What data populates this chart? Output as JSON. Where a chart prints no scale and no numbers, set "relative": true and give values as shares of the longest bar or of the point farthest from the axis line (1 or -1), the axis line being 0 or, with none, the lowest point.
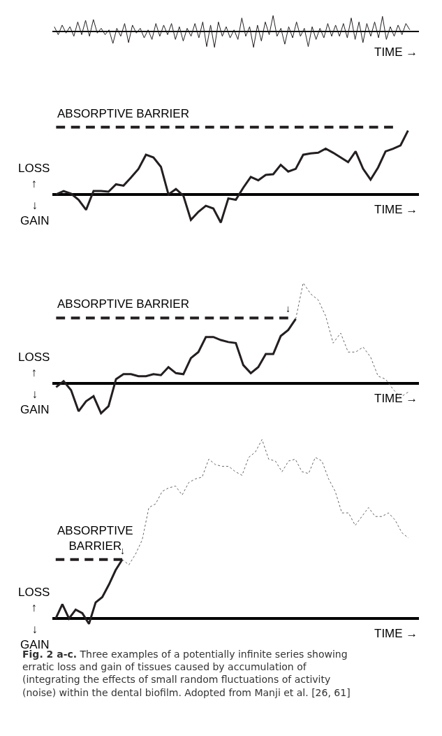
{
  "chart_data": [
    {
      "type": "line",
      "relative": true,
      "xlabel": "TIME →",
      "categories": [
        null,
        null,
        null,
        null,
        null,
        null,
        null,
        null,
        null,
        null,
        null,
        null,
        null,
        null,
        null,
        null,
        null,
        null,
        null,
        null,
        null,
        null,
        null,
        null,
        null,
        null,
        null,
        null,
        null,
        null,
        null,
        null,
        null,
        null,
        null,
        null,
        null,
        null,
        null,
        null,
        null,
        null,
        null,
        null,
        null,
        null,
        null,
        null,
        null,
        null,
        null,
        null,
        null,
        null,
        null,
        null,
        null,
        null,
        null,
        null,
        null,
        null,
        null,
        null,
        null,
        null,
        null,
        null,
        null,
        null,
        null,
        null,
        null,
        null,
        null,
        null,
        null,
        null,
        null,
        null,
        null,
        null,
        null,
        null,
        null,
        null,
        null,
        null,
        null,
        null,
        null,
        null
      ],
      "series": [
        {
          "color": "#231f20",
          "line_style": "solid",
          "values": [
            0.3,
            -0.2,
            0.4,
            -0.1,
            0.3,
            -0.3,
            0.6,
            -0.2,
            0.7,
            -0.3,
            0.75,
            -0.1,
            0.2,
            -0.2,
            0.1,
            -0.75,
            0.2,
            -0.3,
            0.5,
            -0.7,
            0.4,
            -0.1,
            0.2,
            -0.4,
            0.1,
            -0.5,
            0.5,
            -0.3,
            0.4,
            -0.2,
            0.5,
            -0.5,
            0.3,
            -0.6,
            0.2,
            -0.3,
            0.5,
            -0.4,
            0.6,
            -0.95,
            0.4,
            -1.0,
            0.6,
            -0.3,
            0.3,
            -0.4,
            0.1,
            -0.5,
            0.85,
            -0.3,
            0.3,
            -1.0,
            0.4,
            -0.6,
            0.6,
            -0.2,
            1.0,
            -0.3,
            0.2,
            -0.8,
            0.3,
            -0.4,
            0.6,
            -0.3,
            0.2,
            -0.95,
            0.3,
            -0.5,
            0.2,
            -0.4,
            0.5,
            -0.3,
            0.4,
            -0.3,
            0.5,
            -0.4,
            0.85,
            -0.5,
            0.6,
            -0.7,
            0.5,
            -0.3,
            0.6,
            -0.4,
            0.95,
            -0.5,
            0.3,
            -0.3,
            0.4,
            -0.2,
            0.5,
            0.1
          ]
        }
      ]
    },
    {
      "type": "line",
      "relative": true,
      "xlabel": "TIME →",
      "annotations": [
        "LOSS\n↑",
        "↓\nGAIN"
      ],
      "categories": [
        null,
        null,
        null,
        null,
        null,
        null,
        null,
        null,
        null,
        null,
        null,
        null,
        null,
        null,
        null,
        null,
        null,
        null,
        null,
        null,
        null,
        null,
        null,
        null,
        null,
        null,
        null,
        null,
        null,
        null,
        null,
        null,
        null,
        null,
        null,
        null,
        null,
        null,
        null,
        null,
        null,
        null,
        null,
        null,
        null,
        null,
        null,
        null
      ],
      "series": [
        {
          "name": "ABSORPTIVE BARRIER",
          "color": "#231f20",
          "line_style": "dashed",
          "values": [
            1,
            1,
            1,
            1,
            1,
            1,
            1,
            1,
            1,
            1,
            1,
            1,
            1,
            1,
            1,
            1,
            1,
            1,
            1,
            1,
            1,
            1,
            1,
            1,
            1,
            1,
            1,
            1,
            1,
            1,
            1,
            1,
            1,
            1,
            1,
            1,
            1,
            1,
            1,
            1,
            1,
            1,
            1,
            1,
            1,
            1,
            null,
            null
          ]
        },
        {
          "color": "#231f20",
          "line_style": "solid",
          "values": [
            0,
            0.05,
            0.01,
            -0.08,
            -0.23,
            0.05,
            0.05,
            0.04,
            0.15,
            0.13,
            0.25,
            0.38,
            0.59,
            0.55,
            0.41,
            0,
            0.08,
            -0.02,
            -0.38,
            -0.26,
            -0.17,
            -0.21,
            -0.42,
            -0.06,
            -0.08,
            0.1,
            0.26,
            0.21,
            0.29,
            0.3,
            0.44,
            0.34,
            0.38,
            0.59,
            0.61,
            0.62,
            0.68,
            0.62,
            0.55,
            0.48,
            0.64,
            0.38,
            0.22,
            0.4,
            0.64,
            0.68,
            0.73,
            0.95
          ]
        }
      ]
    },
    {
      "type": "line",
      "relative": true,
      "xlabel": "TIME →",
      "annotations": [
        "LOSS\n↑",
        "↓\nGAIN",
        {
          "text": "↓",
          "y": 0.65
        }
      ],
      "categories": [
        null,
        null,
        null,
        null,
        null,
        null,
        null,
        null,
        null,
        null,
        null,
        null,
        null,
        null,
        null,
        null,
        null,
        null,
        null,
        null,
        null,
        null,
        null,
        null,
        null,
        null,
        null,
        null,
        null,
        null,
        null,
        null,
        null,
        null,
        null,
        null,
        null,
        null,
        null,
        null,
        null,
        null,
        null,
        null,
        null,
        null,
        null,
        null
      ],
      "series": [
        {
          "name": "ABSORPTIVE BARRIER",
          "color": "#231f20",
          "line_style": "dashed",
          "values": [
            0.65,
            0.65,
            0.65,
            0.65,
            0.65,
            0.65,
            0.65,
            0.65,
            0.65,
            0.65,
            0.65,
            0.65,
            0.65,
            0.65,
            0.65,
            0.65,
            0.65,
            0.65,
            0.65,
            0.65,
            0.65,
            0.65,
            0.65,
            0.65,
            0.65,
            0.65,
            0.65,
            0.65,
            0.65,
            0.65,
            0.65,
            0.65,
            null,
            null,
            null,
            null,
            null,
            null,
            null,
            null,
            null,
            null,
            null,
            null,
            null,
            null,
            null,
            null
          ]
        },
        {
          "color": "#231f20",
          "line_style": "solid",
          "values": [
            -0.04,
            0.02,
            -0.07,
            -0.28,
            -0.18,
            -0.13,
            -0.3,
            -0.23,
            0.04,
            0.09,
            0.09,
            0.07,
            0.07,
            0.09,
            0.08,
            0.16,
            0.1,
            0.09,
            0.25,
            0.31,
            0.46,
            0.46,
            0.43,
            0.41,
            0.4,
            0.18,
            0.1,
            0.16,
            0.29,
            0.29,
            0.47,
            0.53,
            0.64,
            null,
            null,
            null,
            null,
            null,
            null,
            null,
            null,
            null,
            null,
            null,
            null,
            null,
            null,
            null
          ]
        },
        {
          "color": "#666666",
          "line_style": "dotted",
          "values": [
            null,
            null,
            null,
            null,
            null,
            null,
            null,
            null,
            null,
            null,
            null,
            null,
            null,
            null,
            null,
            null,
            null,
            null,
            null,
            null,
            null,
            null,
            null,
            null,
            null,
            null,
            null,
            null,
            null,
            null,
            null,
            null,
            0.64,
            1.0,
            0.89,
            0.83,
            0.67,
            0.4,
            0.5,
            0.31,
            0.31,
            0.36,
            0.26,
            0.07,
            0.04,
            -0.06,
            -0.14,
            -0.09
          ]
        }
      ]
    },
    {
      "type": "line",
      "relative": true,
      "xlabel": "TIME →",
      "annotations": [
        "LOSS\n↑",
        "↓\nGAIN",
        "Fig. 2 a-c. Three examples of a potentially infinite series showing erratic loss and gain of tissues caused by accumulation of (integrating the effects of small random fluctuations of activity (noise) within the dental biofilm. Adopted from Manji et al. [26, 61]",
        {
          "text": "↓",
          "y": 0.33
        }
      ],
      "categories": [
        null,
        null,
        null,
        null,
        null,
        null,
        null,
        null,
        null,
        null,
        null,
        null,
        null,
        null,
        null,
        null,
        null,
        null,
        null,
        null,
        null,
        null,
        null,
        null,
        null,
        null,
        null,
        null,
        null,
        null,
        null,
        null,
        null,
        null,
        null,
        null,
        null,
        null,
        null,
        null,
        null,
        null,
        null,
        null,
        null,
        null,
        null,
        null,
        null,
        null,
        null,
        null,
        null,
        null
      ],
      "series": [
        {
          "name": "ABSORPTIVE\nBARRIER",
          "color": "#231f20",
          "line_style": "dashed",
          "values": [
            0.33,
            0.33,
            0.33,
            0.33,
            0.33,
            0.33,
            0.33,
            0.33,
            0.33,
            0.33,
            0.33,
            null,
            null,
            null,
            null,
            null,
            null,
            null,
            null,
            null,
            null,
            null,
            null,
            null,
            null,
            null,
            null,
            null,
            null,
            null,
            null,
            null,
            null,
            null,
            null,
            null,
            null,
            null,
            null,
            null,
            null,
            null,
            null,
            null,
            null,
            null,
            null,
            null,
            null,
            null,
            null,
            null,
            null,
            null
          ]
        },
        {
          "color": "#231f20",
          "line_style": "solid",
          "values": [
            0,
            0.08,
            0,
            0.05,
            0.03,
            -0.03,
            0.09,
            0.12,
            0.19,
            0.27,
            0.33,
            null,
            null,
            null,
            null,
            null,
            null,
            null,
            null,
            null,
            null,
            null,
            null,
            null,
            null,
            null,
            null,
            null,
            null,
            null,
            null,
            null,
            null,
            null,
            null,
            null,
            null,
            null,
            null,
            null,
            null,
            null,
            null,
            null,
            null,
            null,
            null,
            null,
            null,
            null,
            null,
            null,
            null,
            null
          ]
        },
        {
          "color": "#666666",
          "line_style": "dotted",
          "values": [
            null,
            null,
            null,
            null,
            null,
            null,
            null,
            null,
            null,
            null,
            0.33,
            0.3,
            0.36,
            0.44,
            0.62,
            0.64,
            0.71,
            0.73,
            0.74,
            0.69,
            0.76,
            0.78,
            0.79,
            0.89,
            0.86,
            0.85,
            0.85,
            0.82,
            0.8,
            0.9,
            0.93,
            1.0,
            0.89,
            0.88,
            0.82,
            0.88,
            0.89,
            0.82,
            0.81,
            0.9,
            0.88,
            0.78,
            0.71,
            0.59,
            0.59,
            0.52,
            0.57,
            0.62,
            0.57,
            0.57,
            0.59,
            0.55,
            0.48,
            0.45
          ]
        }
      ]
    }
  ]
}
